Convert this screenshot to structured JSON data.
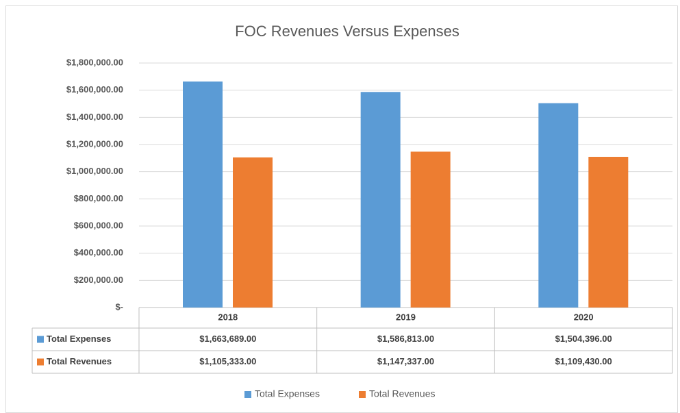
{
  "chart_data": {
    "type": "bar",
    "title": "FOC Revenues Versus Expenses",
    "categories": [
      "2018",
      "2019",
      "2020"
    ],
    "series": [
      {
        "name": "Total Expenses",
        "color": "#5b9bd5",
        "values": [
          1663689,
          1586813,
          1504396
        ],
        "value_labels": [
          "$1,663,689.00",
          "$1,586,813.00",
          "$1,504,396.00"
        ]
      },
      {
        "name": "Total Revenues",
        "color": "#ed7d31",
        "values": [
          1105333,
          1147337,
          1109430
        ],
        "value_labels": [
          "$1,105,333.00",
          "$1,147,337.00",
          "$1,109,430.00"
        ]
      }
    ],
    "ylim": [
      0,
      1800000
    ],
    "yticks": [
      {
        "value": 0,
        "label": "$-"
      },
      {
        "value": 200000,
        "label": "$200,000.00"
      },
      {
        "value": 400000,
        "label": "$400,000.00"
      },
      {
        "value": 600000,
        "label": "$600,000.00"
      },
      {
        "value": 800000,
        "label": "$800,000.00"
      },
      {
        "value": 1000000,
        "label": "$1,000,000.00"
      },
      {
        "value": 1200000,
        "label": "$1,200,000.00"
      },
      {
        "value": 1400000,
        "label": "$1,400,000.00"
      },
      {
        "value": 1600000,
        "label": "$1,600,000.00"
      },
      {
        "value": 1800000,
        "label": "$1,800,000.00"
      }
    ],
    "grid": true,
    "legend": "bottom"
  }
}
